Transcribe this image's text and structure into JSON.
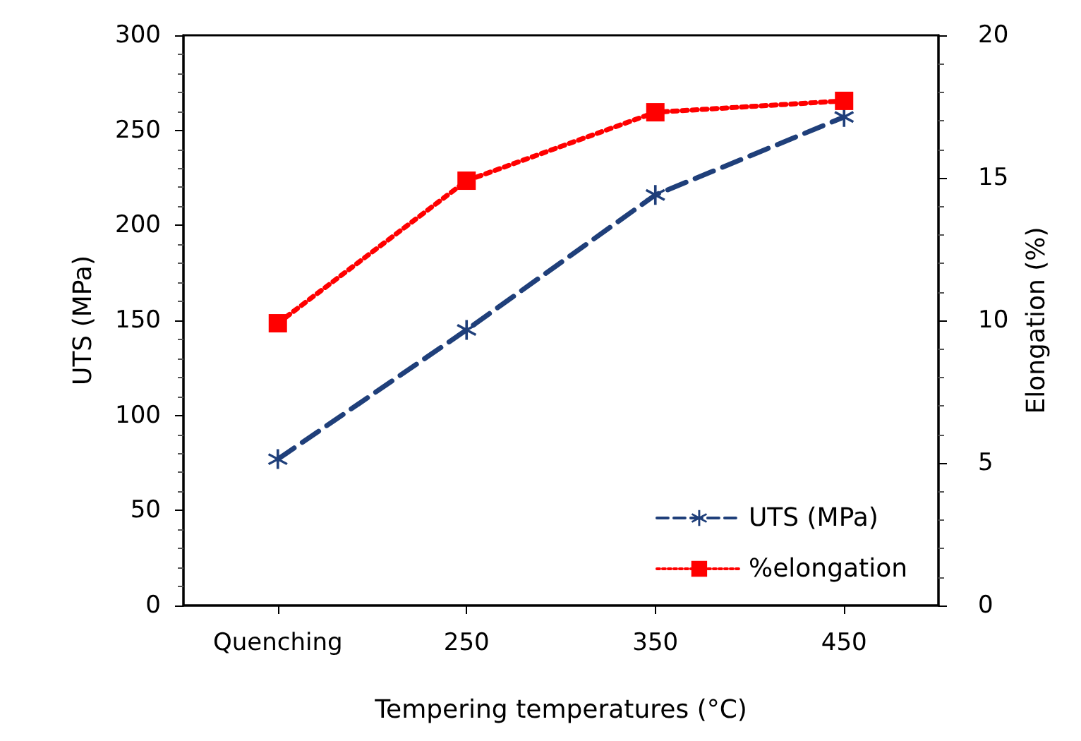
{
  "chart_data": {
    "type": "line",
    "xlabel": "Tempering temperatures (°C)",
    "ylabel": "UTS (MPa)",
    "y2label": "Elongation (%)",
    "categories": [
      "Quenching",
      "250",
      "350",
      "450"
    ],
    "series": [
      {
        "name": "UTS (MPa)",
        "color": "#1f3f7a",
        "values": [
          77,
          145,
          216,
          257
        ],
        "marker": "cross",
        "line_style": "dashed"
      },
      {
        "name": "%elongation",
        "color": "#ff0000",
        "values": [
          9.9,
          14.9,
          17.3,
          17.7
        ],
        "axis": "y2",
        "marker": "square",
        "line_style": "dotted"
      }
    ],
    "ylim": [
      0,
      300
    ],
    "yticks": [
      0,
      50,
      100,
      150,
      200,
      250,
      300
    ],
    "y2lim": [
      0,
      20
    ],
    "y2ticks": [
      0,
      5,
      10,
      15,
      20
    ],
    "grid": false,
    "legend": "bottom right"
  }
}
